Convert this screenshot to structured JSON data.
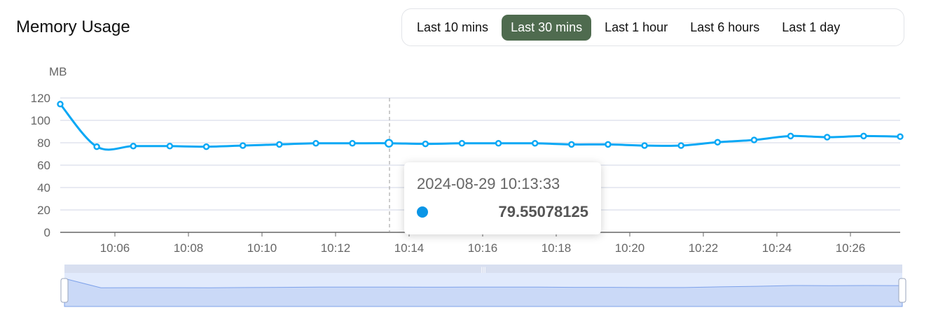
{
  "header": {
    "title": "Memory Usage"
  },
  "time_range": {
    "options": [
      "Last 10 mins",
      "Last 30 mins",
      "Last 1 hour",
      "Last 6 hours",
      "Last 1 day"
    ],
    "selected": "Last 30 mins"
  },
  "tooltip": {
    "time": "2024-08-29 10:13:33",
    "value": "79.55078125",
    "color": "#0a95e6"
  },
  "chart_data": {
    "type": "line",
    "ylabel": "MB",
    "ylim": [
      0,
      120
    ],
    "yticks": [
      "0",
      "20",
      "40",
      "60",
      "80",
      "100",
      "120"
    ],
    "xticks": [
      "10:06",
      "10:08",
      "10:10",
      "10:12",
      "10:14",
      "10:16",
      "10:18",
      "10:20",
      "10:22",
      "10:24",
      "10:26"
    ],
    "grid": true,
    "line_color": "#0aa8f5",
    "x": [
      "10:04:33",
      "10:05:33",
      "10:06:33",
      "10:07:33",
      "10:08:33",
      "10:09:33",
      "10:10:33",
      "10:11:33",
      "10:12:33",
      "10:13:33",
      "10:14:33",
      "10:15:33",
      "10:16:33",
      "10:17:33",
      "10:18:33",
      "10:19:33",
      "10:20:33",
      "10:21:33",
      "10:22:33",
      "10:23:33",
      "10:24:33",
      "10:25:33",
      "10:26:33",
      "10:27:33"
    ],
    "values": [
      114.5,
      76.5,
      77,
      77,
      76.5,
      77.5,
      78.5,
      79.5,
      79.5,
      79.55078125,
      79,
      79.5,
      79.5,
      79.5,
      78.5,
      78.5,
      77.5,
      77.5,
      80.5,
      82.5,
      86,
      85,
      86,
      85.5
    ],
    "highlighted_index": 9
  }
}
